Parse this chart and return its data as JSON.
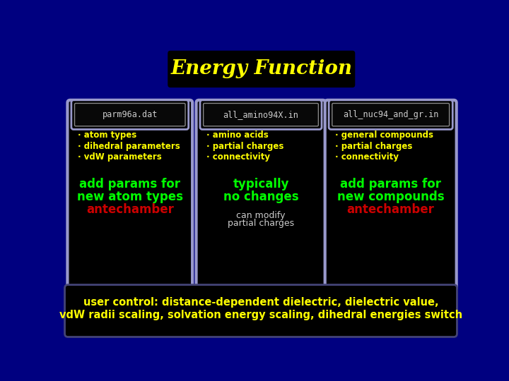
{
  "title": "Energy Function",
  "title_color": "#FFFF00",
  "title_bg": "#000000",
  "bg_color": "#000080",
  "panel_bg": "#000000",
  "panel_border": "#9999CC",
  "file_boxes": [
    "parm96a.dat",
    "all_amino94X.in",
    "all_nuc94_and_gr.in"
  ],
  "file_text_color": "#CCCCCC",
  "bullets_col1": [
    "atom types",
    "dihedral parameters",
    "vdW parameters"
  ],
  "bullets_col2": [
    "amino acids",
    "partial charges",
    "connectivity"
  ],
  "bullets_col3": [
    "general compounds",
    "partial charges",
    "connectivity"
  ],
  "bullet_color": "#FFFF00",
  "big_text_col1": [
    "add params for",
    "new atom types",
    "antechamber"
  ],
  "big_text_col2": [
    "typically",
    "no changes"
  ],
  "big_text_col3": [
    "add params for",
    "new compounds",
    "antechamber"
  ],
  "big_green": "#00FF00",
  "big_red": "#CC0000",
  "can_modify": [
    "can modify",
    "partial charges"
  ],
  "can_modify_color": "#CCCCCC",
  "footer_line1": "user control: distance-dependent dielectric, dielectric value,",
  "footer_line2": "vdW radii scaling, solvation energy scaling, dihedral energies switch",
  "footer_color": "#FFFF00",
  "footer_bg": "#000000"
}
